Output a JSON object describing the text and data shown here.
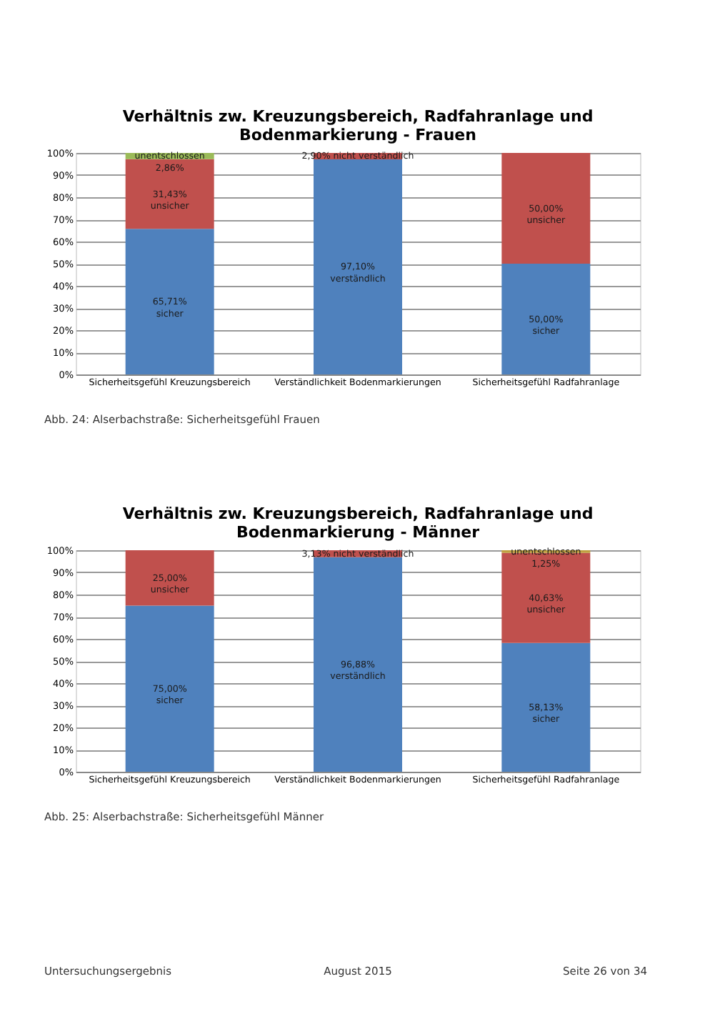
{
  "chart_data": [
    {
      "type": "bar",
      "stacked": true,
      "title": "Verhältnis zw. Kreuzungsbereich, Radfahranlage und Bodenmarkierung - Frauen",
      "categories": [
        "Sicherheitsgefühl Kreuzungsbereich",
        "Verständlichkeit Bodenmarkierungen",
        "Sicherheitsgefühl Radfahranlage"
      ],
      "series": [
        {
          "color": "#4f81bd",
          "values": [
            65.71,
            97.1,
            50.0
          ],
          "value_labels": [
            "65,71%\nsicher",
            "97,10%\nverständlich",
            "50,00%\nsicher"
          ]
        },
        {
          "color": "#c0504d",
          "values": [
            31.43,
            2.9,
            50.0
          ],
          "value_labels": [
            "31,43%\nunsicher",
            "2,90%  nicht verständlich",
            "50,00%\nunsicher"
          ]
        },
        {
          "color": "#9bbb59",
          "values": [
            2.86,
            null,
            null
          ],
          "value_labels": [
            "unentschlossen\n2,86%",
            null,
            null
          ]
        }
      ],
      "ylim": [
        0,
        100
      ],
      "yticks": [
        {
          "value": 0,
          "label": "0%"
        },
        {
          "value": 10,
          "label": "10%"
        },
        {
          "value": 20,
          "label": "20%"
        },
        {
          "value": 30,
          "label": "30%"
        },
        {
          "value": 40,
          "label": "40%"
        },
        {
          "value": 50,
          "label": "50%"
        },
        {
          "value": 60,
          "label": "60%"
        },
        {
          "value": 70,
          "label": "70%"
        },
        {
          "value": 80,
          "label": "80%"
        },
        {
          "value": 90,
          "label": "90%"
        },
        {
          "value": 100,
          "label": "100%"
        }
      ],
      "grid": "y",
      "legend": false,
      "annotations": [
        "Abb. 24: Alserbachstraße: Sicherheitsgefühl Frauen"
      ]
    },
    {
      "type": "bar",
      "stacked": true,
      "title": "Verhältnis zw. Kreuzungsbereich, Radfahranlage und Bodenmarkierung - Männer",
      "categories": [
        "Sicherheitsgefühl Kreuzungsbereich",
        "Verständlichkeit Bodenmarkierungen",
        "Sicherheitsgefühl Radfahranlage"
      ],
      "series": [
        {
          "color": "#4f81bd",
          "values": [
            75.0,
            96.88,
            58.13
          ],
          "value_labels": [
            "75,00%\nsicher",
            "96,88%\nverständlich",
            "58,13%\nsicher"
          ]
        },
        {
          "color": "#c0504d",
          "values": [
            25.0,
            3.13,
            40.63
          ],
          "value_labels": [
            "25,00%\nunsicher",
            "3,13%  nicht verständlich",
            "40,63%\nunsicher"
          ]
        },
        {
          "color": "#c0a040",
          "values": [
            null,
            null,
            1.25
          ],
          "value_labels": [
            null,
            null,
            "unentschlossen\n1,25%"
          ]
        }
      ],
      "ylim": [
        0,
        100
      ],
      "yticks": [
        {
          "value": 0,
          "label": "0%"
        },
        {
          "value": 10,
          "label": "10%"
        },
        {
          "value": 20,
          "label": "20%"
        },
        {
          "value": 30,
          "label": "30%"
        },
        {
          "value": 40,
          "label": "40%"
        },
        {
          "value": 50,
          "label": "50%"
        },
        {
          "value": 60,
          "label": "60%"
        },
        {
          "value": 70,
          "label": "70%"
        },
        {
          "value": 80,
          "label": "80%"
        },
        {
          "value": 90,
          "label": "90%"
        },
        {
          "value": 100,
          "label": "100%"
        }
      ],
      "grid": "y",
      "legend": false,
      "annotations": [
        "Abb. 25: Alserbachstraße: Sicherheitsgefühl Männer",
        "Untersuchungsergebnis",
        "August 2015",
        "Seite 26 von 34"
      ]
    }
  ]
}
